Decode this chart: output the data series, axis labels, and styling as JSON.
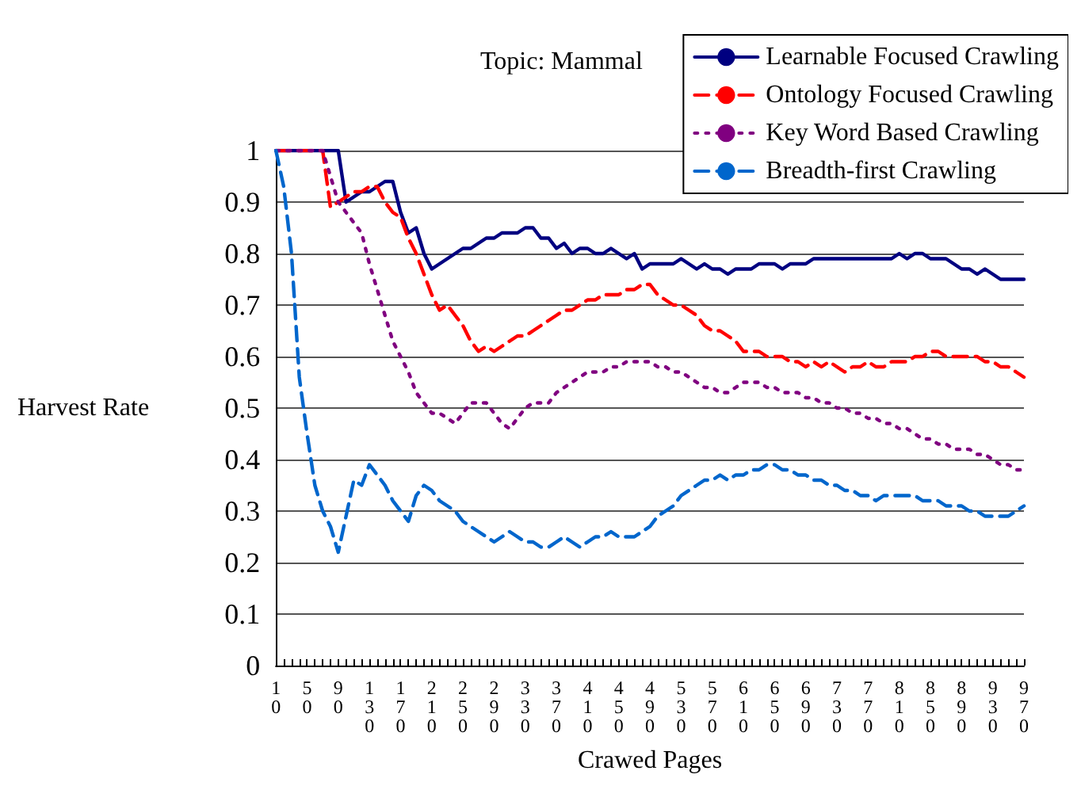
{
  "chart_data": {
    "type": "line",
    "title": "Topic: Mammal",
    "xlabel": "Crawed Pages",
    "ylabel": "Harvest Rate",
    "categories": [
      "10",
      null,
      null,
      null,
      "50",
      null,
      null,
      null,
      "90",
      null,
      null,
      null,
      "130",
      null,
      null,
      null,
      "170",
      null,
      null,
      null,
      "210",
      null,
      null,
      null,
      "250",
      null,
      null,
      null,
      "290",
      null,
      null,
      null,
      "330",
      null,
      null,
      null,
      "370",
      null,
      null,
      null,
      "410",
      null,
      null,
      null,
      "450",
      null,
      null,
      null,
      "490",
      null,
      null,
      null,
      "530",
      null,
      null,
      null,
      "570",
      null,
      null,
      null,
      "610",
      null,
      null,
      null,
      "650",
      null,
      null,
      null,
      "690",
      null,
      null,
      null,
      "730",
      null,
      null,
      null,
      "770",
      null,
      null,
      null,
      "810",
      null,
      null,
      null,
      "850",
      null,
      null,
      null,
      "890",
      null,
      null,
      null,
      "930",
      null,
      null,
      null,
      "970"
    ],
    "ylim": [
      0,
      1
    ],
    "yticks": [
      0,
      0.1,
      0.2,
      0.3,
      0.4,
      0.5,
      0.6,
      0.7,
      0.8,
      0.9,
      1
    ],
    "grid": "y",
    "legend": "top right",
    "marker": "none",
    "series": [
      {
        "name": "Learnable Focused Crawling",
        "color": "#000080",
        "line_style": "solid",
        "values": [
          1,
          1,
          1,
          1,
          1,
          1,
          1,
          1,
          1,
          0.9,
          0.91,
          0.92,
          0.92,
          0.93,
          0.94,
          0.94,
          0.88,
          0.84,
          0.85,
          0.8,
          0.77,
          0.78,
          0.79,
          0.8,
          0.81,
          0.81,
          0.82,
          0.83,
          0.83,
          0.84,
          0.84,
          0.84,
          0.85,
          0.85,
          0.83,
          0.83,
          0.81,
          0.82,
          0.8,
          0.81,
          0.81,
          0.8,
          0.8,
          0.81,
          0.8,
          0.79,
          0.8,
          0.77,
          0.78,
          0.78,
          0.78,
          0.78,
          0.79,
          0.78,
          0.77,
          0.78,
          0.77,
          0.77,
          0.76,
          0.77,
          0.77,
          0.77,
          0.78,
          0.78,
          0.78,
          0.77,
          0.78,
          0.78,
          0.78,
          0.79,
          0.79,
          0.79,
          0.79,
          0.79,
          0.79,
          0.79,
          0.79,
          0.79,
          0.79,
          0.79,
          0.8,
          0.79,
          0.8,
          0.8,
          0.79,
          0.79,
          0.79,
          0.78,
          0.77,
          0.77,
          0.76,
          0.77,
          0.76,
          0.75,
          0.75,
          0.75,
          0.75
        ]
      },
      {
        "name": "Ontology Focused Crawling",
        "color": "#ff0000",
        "line_style": "dashed",
        "values": [
          1,
          1,
          1,
          1,
          1,
          1,
          1,
          0.89,
          0.9,
          0.91,
          0.92,
          0.92,
          0.93,
          0.93,
          0.9,
          0.88,
          0.87,
          0.83,
          0.8,
          0.76,
          0.72,
          0.69,
          0.7,
          0.68,
          0.66,
          0.63,
          0.61,
          0.62,
          0.61,
          0.62,
          0.63,
          0.64,
          0.64,
          0.65,
          0.66,
          0.67,
          0.68,
          0.69,
          0.69,
          0.7,
          0.71,
          0.71,
          0.72,
          0.72,
          0.72,
          0.73,
          0.73,
          0.74,
          0.74,
          0.72,
          0.71,
          0.7,
          0.7,
          0.69,
          0.68,
          0.66,
          0.65,
          0.65,
          0.64,
          0.63,
          0.61,
          0.61,
          0.61,
          0.6,
          0.6,
          0.6,
          0.59,
          0.59,
          0.58,
          0.59,
          0.58,
          0.59,
          0.58,
          0.57,
          0.58,
          0.58,
          0.59,
          0.58,
          0.58,
          0.59,
          0.59,
          0.59,
          0.6,
          0.6,
          0.61,
          0.61,
          0.6,
          0.6,
          0.6,
          0.6,
          0.6,
          0.59,
          0.59,
          0.58,
          0.58,
          0.57,
          0.56
        ]
      },
      {
        "name": "Key Word Based Crawling",
        "color": "#800080",
        "line_style": "dotted",
        "values": [
          1,
          1,
          1,
          1,
          1,
          1,
          1,
          0.95,
          0.9,
          0.88,
          0.86,
          0.84,
          0.78,
          0.73,
          0.68,
          0.63,
          0.6,
          0.57,
          0.53,
          0.51,
          0.49,
          0.49,
          0.48,
          0.47,
          0.49,
          0.51,
          0.51,
          0.51,
          0.49,
          0.47,
          0.46,
          0.48,
          0.5,
          0.51,
          0.51,
          0.51,
          0.53,
          0.54,
          0.55,
          0.56,
          0.57,
          0.57,
          0.57,
          0.58,
          0.58,
          0.59,
          0.59,
          0.59,
          0.59,
          0.58,
          0.58,
          0.57,
          0.57,
          0.56,
          0.55,
          0.54,
          0.54,
          0.53,
          0.53,
          0.54,
          0.55,
          0.55,
          0.55,
          0.54,
          0.54,
          0.53,
          0.53,
          0.53,
          0.52,
          0.52,
          0.51,
          0.51,
          0.5,
          0.5,
          0.49,
          0.49,
          0.48,
          0.48,
          0.47,
          0.47,
          0.46,
          0.46,
          0.45,
          0.44,
          0.44,
          0.43,
          0.43,
          0.42,
          0.42,
          0.42,
          0.41,
          0.41,
          0.4,
          0.39,
          0.39,
          0.38,
          0.38
        ]
      },
      {
        "name": "Breadth-first Crawling",
        "color": "#0066cc",
        "line_style": "dashed",
        "values": [
          1,
          0.93,
          0.8,
          0.56,
          0.45,
          0.35,
          0.3,
          0.27,
          0.22,
          0.29,
          0.36,
          0.35,
          0.39,
          0.37,
          0.35,
          0.32,
          0.3,
          0.28,
          0.33,
          0.35,
          0.34,
          0.32,
          0.31,
          0.3,
          0.28,
          0.27,
          0.26,
          0.25,
          0.24,
          0.25,
          0.26,
          0.25,
          0.24,
          0.24,
          0.23,
          0.23,
          0.24,
          0.25,
          0.24,
          0.23,
          0.24,
          0.25,
          0.25,
          0.26,
          0.25,
          0.25,
          0.25,
          0.26,
          0.27,
          0.29,
          0.3,
          0.31,
          0.33,
          0.34,
          0.35,
          0.36,
          0.36,
          0.37,
          0.36,
          0.37,
          0.37,
          0.38,
          0.38,
          0.39,
          0.39,
          0.38,
          0.38,
          0.37,
          0.37,
          0.36,
          0.36,
          0.35,
          0.35,
          0.34,
          0.34,
          0.33,
          0.33,
          0.32,
          0.33,
          0.33,
          0.33,
          0.33,
          0.33,
          0.32,
          0.32,
          0.32,
          0.31,
          0.31,
          0.31,
          0.3,
          0.3,
          0.29,
          0.29,
          0.29,
          0.29,
          0.3,
          0.31
        ]
      }
    ]
  }
}
